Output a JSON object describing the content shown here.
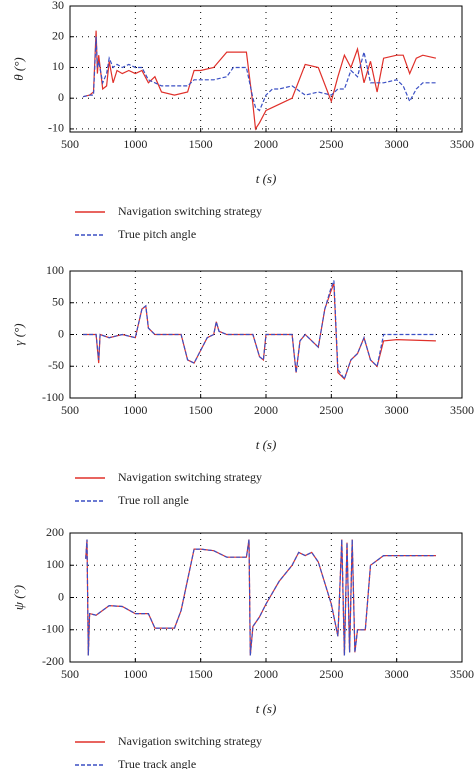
{
  "chart_data": [
    {
      "type": "line",
      "ylabel": "θ (°)",
      "xlabel": "t (s)",
      "x": [
        600,
        650,
        680,
        700,
        710,
        720,
        750,
        780,
        800,
        830,
        860,
        900,
        950,
        1000,
        1050,
        1100,
        1150,
        1200,
        1300,
        1400,
        1450,
        1500,
        1600,
        1700,
        1750,
        1800,
        1850,
        1900,
        1920,
        1950,
        2000,
        2050,
        2100,
        2200,
        2300,
        2400,
        2500,
        2550,
        2600,
        2650,
        2700,
        2750,
        2800,
        2850,
        2900,
        3000,
        3050,
        3100,
        3150,
        3200,
        3300
      ],
      "series": [
        {
          "name": "Navigation switching strategy",
          "color": "#e0302a",
          "values": [
            0.5,
            1,
            2,
            22,
            8,
            14,
            3,
            4,
            12,
            5,
            9,
            8,
            9,
            8,
            9,
            5,
            7,
            2,
            1,
            2,
            9,
            9,
            10,
            15,
            15,
            15,
            15,
            -2,
            -10,
            -8,
            -4,
            -3,
            -2,
            0,
            11,
            10,
            -1,
            7,
            14,
            10,
            16,
            5,
            12,
            2,
            13,
            14,
            14,
            8,
            13,
            14,
            13
          ]
        },
        {
          "name": "True pitch angle",
          "color": "#3a4fc4",
          "values": [
            0.5,
            1,
            1,
            20,
            10,
            12,
            5,
            8,
            13,
            10,
            11,
            10,
            11,
            10,
            10,
            6,
            5,
            4,
            4,
            4,
            6,
            6,
            6,
            7,
            10,
            10,
            10,
            0,
            -3,
            -4,
            1,
            3,
            3,
            4,
            1,
            2,
            1,
            3,
            3,
            9,
            7,
            15,
            5,
            5,
            5,
            6,
            4,
            -1,
            3,
            5,
            5
          ]
        }
      ],
      "xlim": [
        500,
        3500
      ],
      "xticks": [
        500,
        1000,
        1500,
        2000,
        2500,
        3000,
        3500
      ],
      "ylim": [
        -11,
        30
      ],
      "yticks": [
        -10,
        0,
        10,
        20,
        30
      ],
      "grid": true
    },
    {
      "type": "line",
      "ylabel": "γ (°)",
      "xlabel": "t (s)",
      "x": [
        600,
        700,
        720,
        730,
        800,
        900,
        1000,
        1050,
        1080,
        1100,
        1150,
        1350,
        1400,
        1450,
        1550,
        1600,
        1620,
        1640,
        1700,
        1900,
        1950,
        1980,
        2000,
        2200,
        2230,
        2260,
        2300,
        2400,
        2450,
        2500,
        2520,
        2550,
        2600,
        2650,
        2700,
        2750,
        2800,
        2850,
        2900,
        3000,
        3300
      ],
      "series": [
        {
          "name": "Navigation switching strategy",
          "color": "#e0302a",
          "values": [
            0,
            0,
            -45,
            0,
            -5,
            0,
            -5,
            40,
            45,
            10,
            0,
            0,
            -40,
            -45,
            -5,
            0,
            20,
            5,
            0,
            0,
            -35,
            -40,
            0,
            0,
            -60,
            -10,
            0,
            -20,
            40,
            70,
            80,
            -60,
            -70,
            -40,
            -30,
            -5,
            -40,
            -50,
            -10,
            -8,
            -10
          ]
        },
        {
          "name": "True roll angle",
          "color": "#3a4fc4",
          "values": [
            0,
            0,
            -40,
            0,
            -5,
            0,
            -5,
            40,
            45,
            10,
            0,
            0,
            -40,
            -45,
            -5,
            0,
            20,
            5,
            0,
            0,
            -35,
            -40,
            0,
            0,
            -60,
            -10,
            0,
            -20,
            40,
            75,
            85,
            -55,
            -70,
            -40,
            -30,
            -5,
            -40,
            -50,
            0,
            0,
            0
          ]
        }
      ],
      "xlim": [
        500,
        3500
      ],
      "xticks": [
        500,
        1000,
        1500,
        2000,
        2500,
        3000,
        3500
      ],
      "ylim": [
        -100,
        100
      ],
      "yticks": [
        -100,
        -50,
        0,
        50,
        100
      ],
      "grid": true
    },
    {
      "type": "line",
      "ylabel": "ψ (°)",
      "xlabel": "t (s)",
      "x": [
        620,
        630,
        640,
        650,
        700,
        800,
        900,
        1000,
        1100,
        1150,
        1300,
        1350,
        1450,
        1500,
        1600,
        1700,
        1850,
        1870,
        1880,
        1900,
        1950,
        2000,
        2100,
        2200,
        2250,
        2300,
        2350,
        2400,
        2500,
        2550,
        2580,
        2600,
        2620,
        2640,
        2660,
        2680,
        2700,
        2720,
        2760,
        2800,
        2900,
        3000,
        3300
      ],
      "series": [
        {
          "name": "Navigation switching strategy",
          "color": "#e0302a",
          "values": [
            120,
            180,
            -180,
            -50,
            -55,
            -25,
            -28,
            -50,
            -50,
            -95,
            -95,
            -40,
            150,
            150,
            145,
            125,
            125,
            180,
            -180,
            -90,
            -60,
            -20,
            50,
            100,
            140,
            130,
            140,
            110,
            -20,
            -120,
            180,
            -180,
            170,
            -170,
            180,
            -170,
            -100,
            -100,
            -100,
            100,
            130,
            130,
            130
          ]
        },
        {
          "name": "True track angle",
          "color": "#3a4fc4",
          "values": [
            120,
            180,
            -180,
            -50,
            -55,
            -25,
            -28,
            -50,
            -50,
            -95,
            -95,
            -40,
            150,
            150,
            145,
            125,
            125,
            180,
            -180,
            -90,
            -60,
            -20,
            50,
            100,
            140,
            130,
            140,
            110,
            -20,
            -120,
            180,
            -180,
            170,
            -170,
            180,
            -170,
            -100,
            -100,
            -100,
            100,
            130,
            130,
            130
          ]
        }
      ],
      "xlim": [
        500,
        3500
      ],
      "xticks": [
        500,
        1000,
        1500,
        2000,
        2500,
        3000,
        3500
      ],
      "ylim": [
        -200,
        200
      ],
      "yticks": [
        -200,
        -100,
        0,
        100,
        200
      ],
      "grid": true
    }
  ]
}
